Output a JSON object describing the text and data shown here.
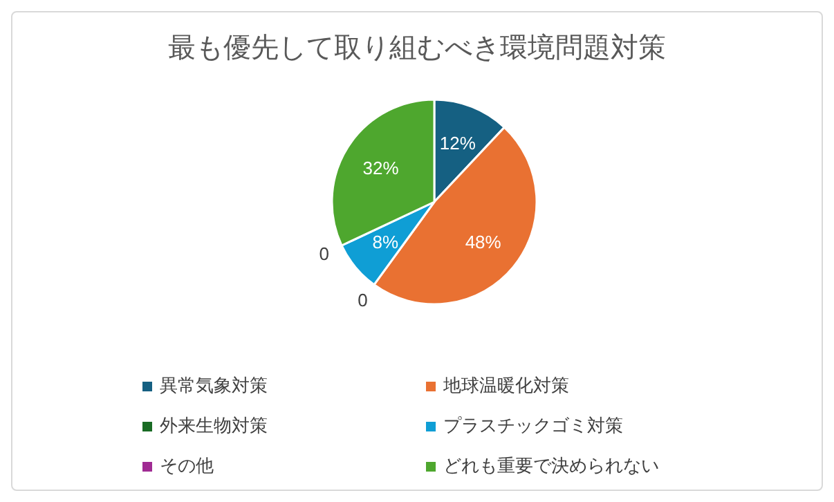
{
  "chart_data": {
    "type": "pie",
    "title": "最も優先して取り組むべき環境問題対策",
    "categories": [
      "異常気象対策",
      "地球温暖化対策",
      "外来生物対策",
      "プラスチックゴミ対策",
      "その他",
      "どれも重要で決められない"
    ],
    "values": [
      12,
      48,
      0,
      8,
      0,
      32
    ],
    "colors": [
      "#156082",
      "#e97132",
      "#196b24",
      "#0f9ed5",
      "#a02b93",
      "#4ea72e"
    ],
    "value_labels": [
      "12%",
      "48%",
      "0",
      "8%",
      "0",
      "32%"
    ],
    "legend": "bottom"
  }
}
